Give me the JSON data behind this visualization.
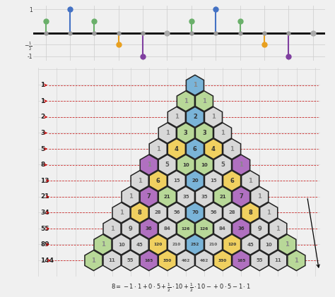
{
  "fibonacci": [
    1,
    1,
    2,
    3,
    5,
    8,
    13,
    21,
    34,
    55,
    89,
    144
  ],
  "pascal_rows": [
    [
      1
    ],
    [
      1,
      1
    ],
    [
      1,
      2,
      1
    ],
    [
      1,
      3,
      3,
      1
    ],
    [
      1,
      4,
      6,
      4,
      1
    ],
    [
      1,
      5,
      10,
      10,
      5,
      1
    ],
    [
      1,
      6,
      15,
      20,
      15,
      6,
      1
    ],
    [
      1,
      7,
      21,
      35,
      35,
      21,
      7,
      1
    ],
    [
      1,
      8,
      28,
      56,
      70,
      56,
      28,
      8,
      1
    ],
    [
      1,
      9,
      36,
      84,
      126,
      126,
      84,
      36,
      9,
      1
    ],
    [
      1,
      10,
      45,
      120,
      210,
      252,
      210,
      120,
      45,
      10,
      1
    ],
    [
      1,
      11,
      55,
      165,
      330,
      462,
      462,
      330,
      165,
      55,
      11,
      1
    ]
  ],
  "bg_color": "#f0f0f0",
  "lollipop_data": {
    "positions": [
      1,
      2,
      3,
      4,
      5,
      6,
      7,
      8,
      9,
      10,
      11,
      12
    ],
    "values": [
      0.5,
      1.0,
      0.5,
      -0.5,
      -1.0,
      0.0,
      0.5,
      1.0,
      0.5,
      -0.5,
      -1.0,
      0.0
    ],
    "colors": [
      "#6ab06a",
      "#4472c4",
      "#6ab06a",
      "#e8a020",
      "#8040a0",
      "#aaaaaa",
      "#6ab06a",
      "#4472c4",
      "#6ab06a",
      "#e8a020",
      "#8040a0",
      "#aaaaaa"
    ]
  },
  "cell_colors": {
    "blue": "#7ab4d8",
    "green": "#b8d898",
    "yellow": "#f0d060",
    "purple": "#b070c0",
    "lgray": "#d8d8d8",
    "white": "#eeeeee"
  },
  "cell_color_map": [
    [
      "blue"
    ],
    [
      "green",
      "green"
    ],
    [
      "lgray",
      "blue",
      "lgray"
    ],
    [
      "lgray",
      "green",
      "green",
      "lgray"
    ],
    [
      "lgray",
      "yellow",
      "blue",
      "yellow",
      "lgray"
    ],
    [
      "purple",
      "lgray",
      "green",
      "green",
      "lgray",
      "purple"
    ],
    [
      "lgray",
      "yellow",
      "lgray",
      "blue",
      "lgray",
      "yellow",
      "lgray"
    ],
    [
      "lgray",
      "purple",
      "green",
      "lgray",
      "lgray",
      "green",
      "purple",
      "lgray"
    ],
    [
      "lgray",
      "yellow",
      "lgray",
      "lgray",
      "blue",
      "lgray",
      "lgray",
      "yellow",
      "lgray"
    ],
    [
      "lgray",
      "lgray",
      "purple",
      "lgray",
      "green",
      "green",
      "lgray",
      "purple",
      "lgray",
      "lgray"
    ],
    [
      "green",
      "lgray",
      "lgray",
      "yellow",
      "lgray",
      "blue",
      "lgray",
      "yellow",
      "lgray",
      "lgray",
      "green"
    ],
    [
      "green",
      "lgray",
      "lgray",
      "purple",
      "yellow",
      "lgray",
      "lgray",
      "yellow",
      "purple",
      "lgray",
      "lgray",
      "green"
    ]
  ],
  "arrow_color": "#cc0000",
  "grid_color": "#cccccc"
}
